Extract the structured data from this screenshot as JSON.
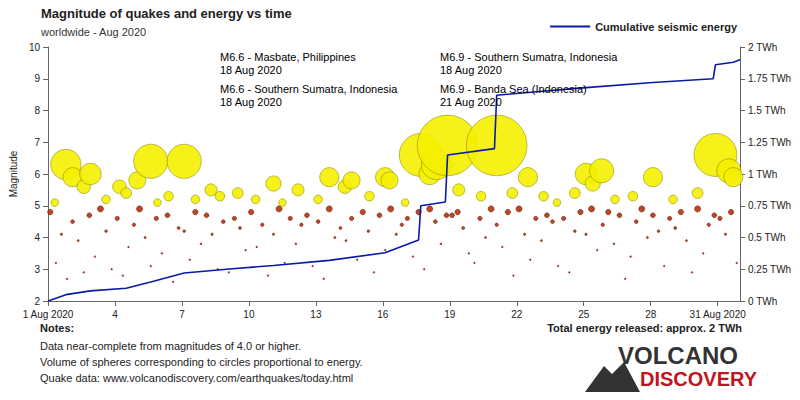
{
  "chart_data": {
    "type": "scatter",
    "title": "Magnitude of quakes and energy vs time",
    "subtitle": "worldwide - Aug 2020",
    "y_label": "Magnitude",
    "grid": false,
    "legend": "top-right",
    "xlim": [
      1,
      32
    ],
    "xticks": [
      {
        "value": 1,
        "label": "1 Aug 2020"
      },
      4,
      7,
      10,
      13,
      16,
      19,
      22,
      25,
      28,
      {
        "value": 31,
        "label": "31 Aug 2020"
      }
    ],
    "ylim": [
      2,
      10
    ],
    "yticks": [
      2,
      3,
      4,
      5,
      6,
      7,
      8,
      9,
      10
    ],
    "y2lim": [
      0,
      2
    ],
    "y2ticks": [
      {
        "value": 0,
        "label": "0 TWh"
      },
      {
        "value": 0.25,
        "label": "0.25 TWh"
      },
      {
        "value": 0.5,
        "label": "0.5 TWh"
      },
      {
        "value": 0.75,
        "label": "0.75 TWh"
      },
      {
        "value": 1,
        "label": "1 TWh"
      },
      {
        "value": 1.25,
        "label": "1.25 TWh"
      },
      {
        "value": 1.5,
        "label": "1.5 TWh"
      },
      {
        "value": 1.75,
        "label": "1.75 TWh"
      },
      {
        "value": 2,
        "label": "2 TWh"
      }
    ],
    "series": [
      {
        "type": "scatter",
        "marker": "circle",
        "color": "#b5330f",
        "x": [
          1.1,
          1.35,
          1.6,
          1.85,
          2.1,
          2.35,
          2.6,
          2.85,
          3.1,
          3.35,
          3.6,
          3.85,
          4.1,
          4.35,
          4.6,
          4.85,
          5.1,
          5.35,
          5.6,
          5.85,
          6.1,
          6.35,
          6.6,
          6.85,
          7.1,
          7.35,
          7.6,
          7.85,
          8.1,
          8.35,
          8.6,
          8.85,
          9.1,
          9.35,
          9.6,
          9.85,
          10.1,
          10.35,
          10.6,
          10.85,
          11.1,
          11.35,
          11.6,
          11.85,
          12.1,
          12.35,
          12.6,
          12.85,
          13.1,
          13.35,
          13.6,
          13.85,
          14.1,
          14.35,
          14.6,
          14.85,
          15.1,
          15.35,
          15.6,
          15.85,
          16.1,
          16.35,
          16.6,
          16.85,
          17.1,
          17.35,
          17.6,
          17.85,
          18.1,
          18.35,
          18.6,
          18.85,
          19.1,
          19.35,
          19.6,
          19.85,
          20.1,
          20.35,
          20.6,
          20.85,
          21.1,
          21.35,
          21.6,
          21.85,
          22.1,
          22.35,
          22.6,
          22.85,
          23.1,
          23.35,
          23.6,
          23.85,
          24.1,
          24.35,
          24.6,
          24.85,
          25.1,
          25.35,
          25.6,
          25.85,
          26.1,
          26.35,
          26.6,
          26.85,
          27.1,
          27.35,
          27.6,
          27.85,
          28.1,
          28.35,
          28.6,
          28.85,
          29.1,
          29.35,
          29.6,
          29.85,
          30.1,
          30.35,
          30.6,
          30.85,
          31.1,
          31.35,
          31.6,
          31.85
        ],
        "values": [
          4.8,
          3.2,
          4.1,
          2.7,
          4.5,
          3.9,
          2.9,
          4.7,
          3.4,
          4.9,
          4.2,
          3.0,
          4.6,
          2.8,
          3.7,
          4.4,
          4.9,
          4.0,
          3.1,
          4.6,
          3.5,
          4.7,
          2.6,
          4.3,
          4.2,
          3.3,
          4.8,
          3.8,
          4.7,
          4.1,
          3.0,
          4.5,
          2.9,
          4.6,
          4.3,
          3.6,
          4.8,
          3.7,
          4.4,
          2.8,
          4.1,
          4.9,
          3.2,
          4.6,
          3.8,
          4.4,
          4.7,
          3.1,
          4.5,
          2.7,
          4.9,
          4.0,
          4.3,
          3.9,
          4.6,
          3.3,
          4.8,
          4.2,
          2.9,
          4.7,
          3.6,
          4.9,
          4.1,
          4.4,
          4.6,
          3.4,
          4.8,
          3.0,
          4.9,
          4.5,
          3.8,
          4.7,
          4.7,
          4.8,
          4.3,
          3.5,
          3.2,
          4.6,
          4.0,
          4.9,
          4.4,
          3.7,
          4.8,
          2.8,
          4.9,
          4.1,
          3.3,
          4.6,
          3.9,
          4.7,
          4.5,
          3.1,
          4.6,
          2.9,
          4.2,
          4.8,
          4.1,
          4.9,
          3.6,
          4.4,
          4.8,
          3.8,
          4.7,
          2.7,
          3.4,
          4.5,
          4.9,
          4.0,
          4.7,
          4.2,
          3.1,
          4.6,
          4.3,
          4.8,
          3.9,
          2.9,
          4.9,
          3.5,
          4.4,
          4.7,
          4.6,
          4.1,
          4.8,
          3.2
        ]
      },
      {
        "type": "scatter",
        "marker": "circle",
        "color": "#f5f000",
        "x": [
          1.3,
          1.8,
          2.1,
          2.6,
          2.9,
          3.6,
          4.2,
          4.5,
          5.0,
          5.6,
          5.9,
          6.4,
          7.1,
          7.6,
          8.3,
          8.7,
          9.5,
          10.3,
          11.1,
          11.5,
          12.2,
          13.1,
          13.6,
          14.3,
          14.6,
          15.4,
          16.1,
          16.3,
          17.0,
          17.7,
          18.1,
          18.4,
          18.9,
          19.4,
          20.4,
          21.1,
          21.8,
          22.5,
          23.2,
          23.8,
          24.6,
          25.1,
          25.4,
          25.8,
          26.4,
          27.2,
          28.1,
          29.0,
          30.1,
          30.9,
          31.5,
          31.7
        ],
        "values": [
          5.1,
          6.3,
          5.9,
          5.6,
          6.0,
          5.2,
          5.6,
          5.4,
          5.8,
          6.4,
          5.1,
          5.3,
          6.4,
          5.2,
          5.5,
          5.3,
          5.4,
          5.2,
          5.7,
          5.1,
          5.5,
          5.2,
          5.9,
          5.6,
          5.8,
          5.3,
          5.9,
          5.8,
          5.1,
          6.6,
          6.0,
          6.3,
          6.9,
          5.5,
          5.3,
          6.9,
          5.4,
          5.9,
          5.3,
          5.1,
          5.4,
          6.0,
          5.7,
          6.1,
          5.2,
          5.3,
          5.9,
          5.2,
          5.4,
          6.6,
          6.1,
          5.9
        ]
      },
      {
        "name": "Cumulative seismic energy",
        "type": "line",
        "axis": "y2",
        "color": "#0a1aa5",
        "line_style": "solid",
        "x": [
          1,
          1.8,
          2.9,
          4.5,
          5.6,
          7.1,
          9.0,
          11.1,
          13.6,
          16.1,
          17.6,
          17.7,
          18.8,
          18.9,
          21.0,
          21.1,
          23.0,
          25.1,
          28.1,
          30.8,
          30.9,
          31.7,
          32
        ],
        "values": [
          0,
          0.05,
          0.08,
          0.1,
          0.15,
          0.22,
          0.25,
          0.28,
          0.32,
          0.38,
          0.48,
          0.75,
          0.78,
          1.15,
          1.2,
          1.62,
          1.65,
          1.68,
          1.72,
          1.75,
          1.86,
          1.88,
          1.9
        ]
      }
    ],
    "annotations": [
      {
        "text": "M6.6 - Masbate, Philippines",
        "date": "18 Aug 2020"
      },
      {
        "text": "M6.9 - Southern Sumatra, Indonesia",
        "date": "18 Aug 2020"
      },
      {
        "text": "M6.6 - Southern Sumatra, Indonesia",
        "date": "18 Aug 2020"
      },
      {
        "text": "M6.9 - Banda Sea (Indonesia)",
        "date": "21 Aug 2020"
      }
    ]
  },
  "notes": {
    "heading": "Notes:",
    "lines": [
      "Data near-complete from magnitudes of 4.0 or higher.",
      "Volume of spheres corresponding to circles proportional to energy.",
      "Quake data: www.volcanodiscovery.com/earthquakes/today.html"
    ]
  },
  "total": "Total energy released: approx. 2 TWh",
  "logo": [
    "VOLCANO",
    "DISCOVERY"
  ]
}
